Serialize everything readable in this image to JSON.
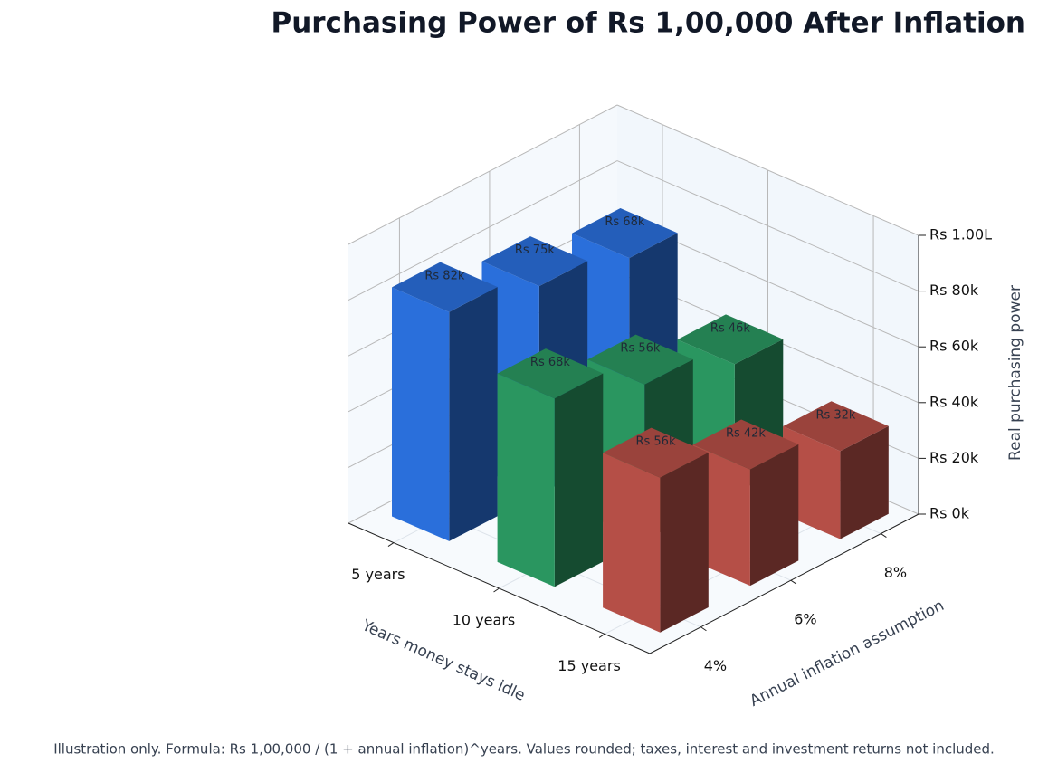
{
  "chart_data": {
    "type": "bar3d",
    "title": "Purchasing Power of Rs 1,00,000 After Inflation",
    "x_label": "Years money stays idle",
    "y_label": "Annual inflation assumption",
    "z_label": "Real purchasing power",
    "categories": [
      "4%",
      "6%",
      "8%"
    ],
    "series": [
      {
        "name": "5 years",
        "color": "#2a6fdb",
        "values": [
          82193,
          74726,
          68058
        ],
        "value_labels": [
          "Rs 82k",
          "Rs 75k",
          "Rs 68k"
        ]
      },
      {
        "name": "10 years",
        "color": "#2a9660",
        "values": [
          67556,
          55839,
          46319
        ],
        "value_labels": [
          "Rs 68k",
          "Rs 56k",
          "Rs 46k"
        ]
      },
      {
        "name": "15 years",
        "color": "#b54f47",
        "values": [
          55526,
          41727,
          31524
        ],
        "value_labels": [
          "Rs 56k",
          "Rs 42k",
          "Rs 32k"
        ]
      }
    ],
    "zlim": [
      0,
      100000
    ],
    "zticks": [
      {
        "value": 0,
        "label": "Rs 0k"
      },
      {
        "value": 20000,
        "label": "Rs 20k"
      },
      {
        "value": 40000,
        "label": "Rs 40k"
      },
      {
        "value": 60000,
        "label": "Rs 60k"
      },
      {
        "value": 80000,
        "label": "Rs 80k"
      },
      {
        "value": 100000,
        "label": "Rs 1.00L"
      }
    ],
    "grid": true,
    "footnote": "Illustration only. Formula: Rs 1,00,000 / (1 + annual inflation)^years. Values rounded; taxes, interest and investment returns not included."
  }
}
